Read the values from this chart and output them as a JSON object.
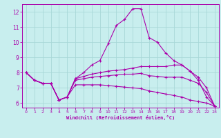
{
  "xlabel": "Windchill (Refroidissement éolien,°C)",
  "xlim": [
    -0.5,
    23.5
  ],
  "ylim": [
    5.7,
    12.5
  ],
  "xticks": [
    0,
    1,
    2,
    3,
    4,
    5,
    6,
    7,
    8,
    9,
    10,
    11,
    12,
    13,
    14,
    15,
    16,
    17,
    18,
    19,
    20,
    21,
    22,
    23
  ],
  "yticks": [
    6,
    7,
    8,
    9,
    10,
    11,
    12
  ],
  "background_color": "#c8eeee",
  "grid_color": "#a8d8d8",
  "line_color": "#aa00aa",
  "curves": [
    {
      "x": [
        0,
        1,
        2,
        3,
        4,
        5,
        6,
        7,
        8,
        9,
        10,
        11,
        12,
        13,
        14,
        15,
        16,
        17,
        18,
        19,
        20,
        21,
        22,
        23
      ],
      "y": [
        8.0,
        7.5,
        7.3,
        7.3,
        6.2,
        6.4,
        7.6,
        8.0,
        8.5,
        8.8,
        9.9,
        11.1,
        11.5,
        12.2,
        12.2,
        10.3,
        10.0,
        9.3,
        8.8,
        8.5,
        8.1,
        7.5,
        6.4,
        5.8
      ]
    },
    {
      "x": [
        0,
        1,
        2,
        3,
        4,
        5,
        6,
        7,
        8,
        9,
        10,
        11,
        12,
        13,
        14,
        15,
        16,
        17,
        18,
        19,
        20,
        21,
        22,
        23
      ],
      "y": [
        8.0,
        7.5,
        7.3,
        7.3,
        6.2,
        6.4,
        7.6,
        7.75,
        7.9,
        8.0,
        8.1,
        8.15,
        8.2,
        8.3,
        8.4,
        8.4,
        8.4,
        8.4,
        8.5,
        8.5,
        8.1,
        7.7,
        7.0,
        5.8
      ]
    },
    {
      "x": [
        0,
        1,
        2,
        3,
        4,
        5,
        6,
        7,
        8,
        9,
        10,
        11,
        12,
        13,
        14,
        15,
        16,
        17,
        18,
        19,
        20,
        21,
        22,
        23
      ],
      "y": [
        8.0,
        7.5,
        7.3,
        7.3,
        6.2,
        6.4,
        7.5,
        7.6,
        7.7,
        7.75,
        7.8,
        7.85,
        7.9,
        7.9,
        7.95,
        7.8,
        7.75,
        7.7,
        7.7,
        7.7,
        7.5,
        7.3,
        6.7,
        5.8
      ]
    },
    {
      "x": [
        0,
        1,
        2,
        3,
        4,
        5,
        6,
        7,
        8,
        9,
        10,
        11,
        12,
        13,
        14,
        15,
        16,
        17,
        18,
        19,
        20,
        21,
        22,
        23
      ],
      "y": [
        8.0,
        7.5,
        7.3,
        7.3,
        6.2,
        6.4,
        7.2,
        7.2,
        7.2,
        7.2,
        7.15,
        7.1,
        7.05,
        7.0,
        6.95,
        6.8,
        6.7,
        6.6,
        6.5,
        6.4,
        6.2,
        6.1,
        6.0,
        5.8
      ]
    }
  ]
}
